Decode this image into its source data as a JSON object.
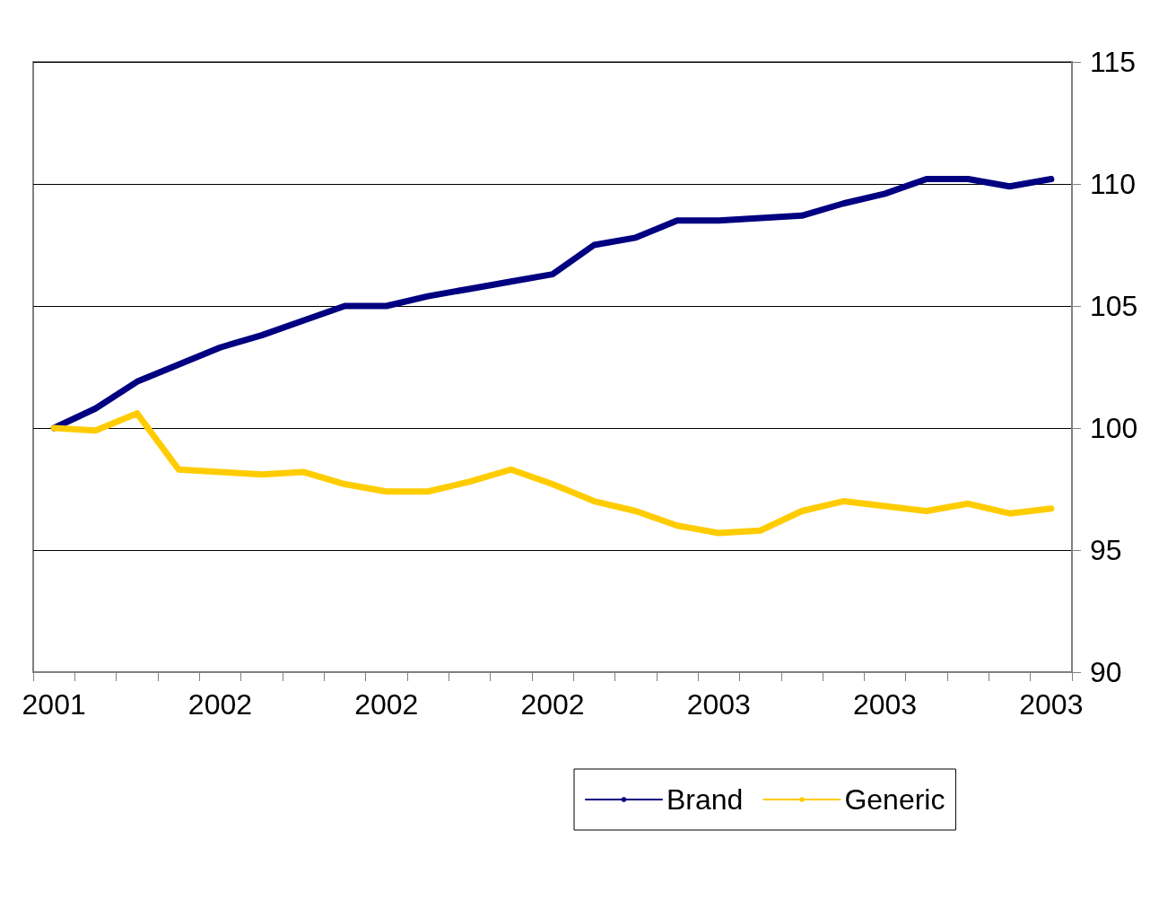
{
  "chart_data": {
    "type": "line",
    "categories": [
      "2001",
      null,
      null,
      null,
      "2002",
      null,
      null,
      null,
      "2002",
      null,
      null,
      null,
      "2002",
      null,
      null,
      null,
      "2003",
      null,
      null,
      null,
      "2003",
      null,
      null,
      null,
      "2003"
    ],
    "series": [
      {
        "name": "Brand",
        "color": "#000080",
        "values": [
          100,
          100.8,
          101.9,
          102.6,
          103.3,
          103.8,
          104.4,
          105.0,
          105.0,
          105.4,
          105.7,
          106.0,
          106.3,
          107.5,
          107.8,
          108.5,
          108.5,
          108.6,
          108.7,
          109.2,
          109.6,
          110.2,
          110.2,
          109.9,
          110.2
        ]
      },
      {
        "name": "Generic",
        "color": "#ffcc00",
        "values": [
          100,
          99.9,
          100.6,
          98.3,
          98.2,
          98.1,
          98.2,
          97.7,
          97.4,
          97.4,
          97.8,
          98.3,
          97.7,
          97.0,
          96.6,
          96.0,
          95.7,
          95.8,
          96.6,
          97.0,
          96.8,
          96.6,
          96.9,
          96.5,
          96.7
        ]
      }
    ],
    "ylim": [
      90,
      115
    ],
    "yticks": [
      90,
      95,
      100,
      105,
      110,
      115
    ],
    "grid": "y",
    "legend": "bottom",
    "marker": "none",
    "line_style": "solid"
  }
}
